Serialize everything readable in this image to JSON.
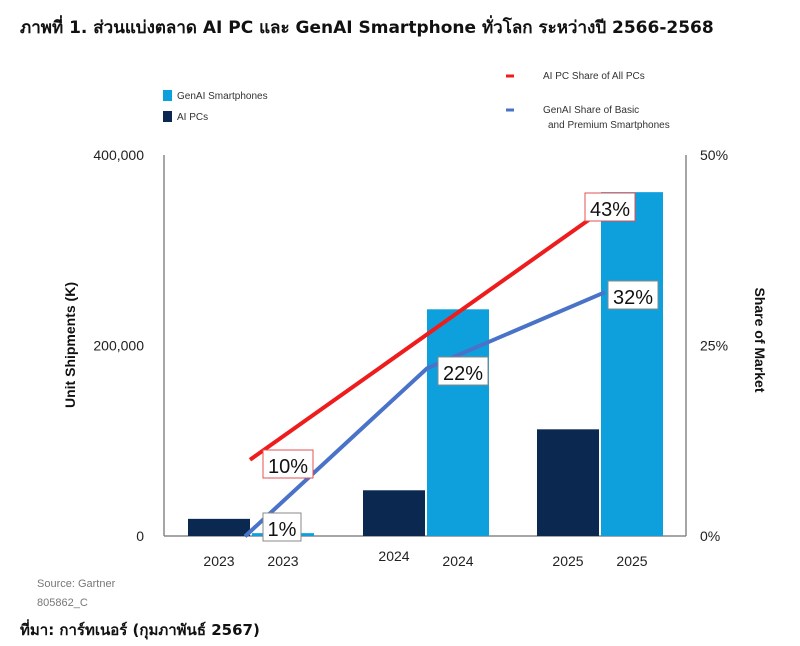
{
  "title": "ภาพที่ 1. ส่วนแบ่งตลาด AI PC และ GenAI Smartphone ทั่วโลก ระหว่างปี 2566-2568",
  "source_text": "Source: Gartner",
  "figure_code": "805862_C",
  "footer": "ที่มา: การ์ทเนอร์ (กุมภาพันธ์ 2567)",
  "chart_data": {
    "type": "bar+line",
    "ylabel": "Unit Shipments (K)",
    "y2label": "Share of Market",
    "ylim": [
      0,
      400000
    ],
    "y2lim": [
      0,
      50
    ],
    "yticks": [
      "0",
      "200,000",
      "400,000"
    ],
    "y2ticks": [
      "0%",
      "25%",
      "50%"
    ],
    "grid": false,
    "categories": [
      "2023",
      "2024",
      "2025"
    ],
    "bar_series": [
      {
        "name": "AI PCs",
        "color": "#0b2850",
        "values": [
          18000,
          48000,
          112000
        ],
        "tick_labels": [
          "2023",
          "2024",
          "2025"
        ]
      },
      {
        "name": "GenAI Smartphones",
        "color": "#0ea0dc",
        "values": [
          3000,
          238000,
          361000
        ],
        "tick_labels": [
          "2023",
          "2024",
          "2025"
        ]
      }
    ],
    "line_series": [
      {
        "name": "AI PC Share of All PCs",
        "color": "#ee1c1c",
        "x": [
          "2023",
          "2025"
        ],
        "values": [
          10,
          43
        ],
        "labels": [
          "10%",
          "43%"
        ],
        "label_border": "#e05050"
      },
      {
        "name": "GenAI Share of Basic and Premium Smartphones",
        "color": "#4a72c8",
        "x": [
          "2023",
          "2024",
          "2025"
        ],
        "values": [
          1,
          22,
          32
        ],
        "labels": [
          "1%",
          "22%",
          "32%"
        ],
        "label_border": "#888888"
      }
    ],
    "legend_bars_placement": "top-left",
    "legend_lines_placement": "top-right"
  }
}
